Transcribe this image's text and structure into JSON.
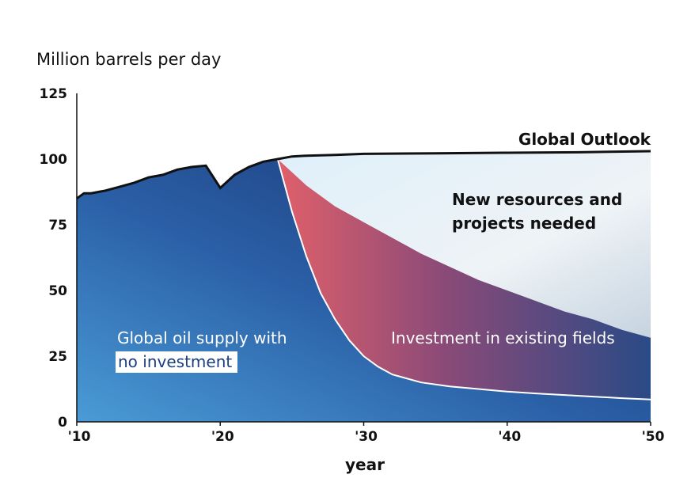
{
  "chart_data": {
    "type": "area",
    "ylabel": "Million barrels per day",
    "xlabel": "year",
    "ylim": [
      0,
      125
    ],
    "xlim": [
      2010,
      2050
    ],
    "y_ticks": [
      "0",
      "25",
      "50",
      "75",
      "100",
      "125"
    ],
    "y_tick_values": [
      0,
      25,
      50,
      75,
      100,
      125
    ],
    "x_ticks": [
      "'10",
      "'20",
      "'30",
      "'40",
      "'50"
    ],
    "x_tick_values": [
      2010,
      2020,
      2030,
      2040,
      2050
    ],
    "grid": false,
    "series": [
      {
        "name": "Global Outlook",
        "x": [
          2010,
          2010.5,
          2011,
          2012,
          2013,
          2014,
          2015,
          2016,
          2017,
          2018,
          2019,
          2020,
          2021,
          2022,
          2023,
          2024,
          2025,
          2026,
          2028,
          2030,
          2035,
          2040,
          2045,
          2050
        ],
        "values": [
          85,
          87,
          87,
          88,
          89.5,
          91,
          93,
          94,
          96,
          97,
          97.5,
          89,
          94,
          97,
          99,
          100,
          101,
          101.3,
          101.6,
          102,
          102.2,
          102.4,
          102.6,
          103
        ]
      },
      {
        "name": "Investment in existing fields",
        "x": [
          2024,
          2026,
          2028,
          2030,
          2032,
          2034,
          2036,
          2038,
          2040,
          2042,
          2044,
          2046,
          2048,
          2050
        ],
        "values": [
          100,
          90,
          82,
          76,
          70,
          64,
          59,
          54,
          50,
          46,
          42,
          39,
          35,
          32
        ]
      },
      {
        "name": "Global oil supply with no investment",
        "x": [
          2024,
          2025,
          2026,
          2027,
          2028,
          2029,
          2030,
          2031,
          2032,
          2034,
          2036,
          2038,
          2040,
          2042,
          2044,
          2046,
          2048,
          2050
        ],
        "values": [
          100,
          80,
          63,
          49,
          39,
          31,
          25,
          21,
          18,
          15,
          13.5,
          12.5,
          11.5,
          10.8,
          10.2,
          9.6,
          9,
          8.5
        ]
      }
    ],
    "annotations": {
      "outlook_label": "Global Outlook",
      "new_resources_line1": "New resources and",
      "new_resources_line2": "projects needed",
      "investment_label": "Investment in existing fields",
      "no_invest_line1": "Global oil supply with",
      "no_invest_line2": "no investment"
    },
    "colors": {
      "no_investment_light": "#4a9bd6",
      "no_investment_dark": "#1a2f6e",
      "investment_red": "#e0606a",
      "investment_dark": "#2a4a86",
      "new_resources_light": "#dff0fa",
      "new_resources_grey": "#e8e8ec",
      "outlook_line": "#111111"
    }
  }
}
